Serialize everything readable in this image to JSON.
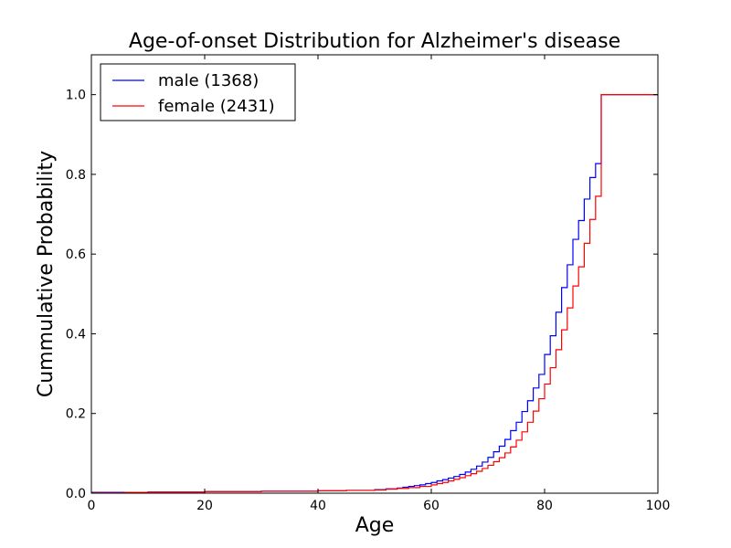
{
  "chart_data": {
    "type": "line",
    "step": "post",
    "title": "Age-of-onset Distribution for Alzheimer's disease",
    "xlabel": "Age",
    "ylabel": "Cummulative Probability",
    "xlim": [
      0,
      100
    ],
    "ylim": [
      0,
      1.1
    ],
    "x_ticks": [
      0,
      20,
      40,
      60,
      80,
      100
    ],
    "x_tick_labels": [
      "0",
      "20",
      "40",
      "60",
      "80",
      "100"
    ],
    "y_ticks": [
      0,
      0.2,
      0.4,
      0.6,
      0.8,
      1.0
    ],
    "y_tick_labels": [
      "0.0",
      "0.2",
      "0.4",
      "0.6",
      "0.8",
      "1.0"
    ],
    "grid": false,
    "legend_position": "top-left",
    "series": [
      {
        "name": "male (1368)",
        "color": "#0000ff",
        "x": [
          0,
          10,
          20,
          30,
          40,
          45,
          50,
          52,
          54,
          55,
          56,
          57,
          58,
          59,
          60,
          61,
          62,
          63,
          64,
          65,
          66,
          67,
          68,
          69,
          70,
          71,
          72,
          73,
          74,
          75,
          76,
          77,
          78,
          79,
          80,
          81,
          82,
          83,
          84,
          85,
          86,
          87,
          88,
          89,
          90,
          100
        ],
        "y": [
          0.002,
          0.003,
          0.004,
          0.005,
          0.006,
          0.007,
          0.009,
          0.011,
          0.013,
          0.015,
          0.017,
          0.019,
          0.021,
          0.024,
          0.027,
          0.031,
          0.034,
          0.038,
          0.042,
          0.047,
          0.053,
          0.06,
          0.068,
          0.078,
          0.09,
          0.104,
          0.118,
          0.135,
          0.157,
          0.178,
          0.205,
          0.232,
          0.264,
          0.298,
          0.348,
          0.395,
          0.454,
          0.516,
          0.573,
          0.637,
          0.684,
          0.738,
          0.792,
          0.827,
          1.0,
          1.0
        ]
      },
      {
        "name": "female (2431)",
        "color": "#ff0000",
        "x": [
          0,
          6,
          10,
          20,
          30,
          40,
          45,
          50,
          52,
          54,
          56,
          58,
          60,
          61,
          62,
          63,
          64,
          65,
          66,
          67,
          68,
          69,
          70,
          71,
          72,
          73,
          74,
          75,
          76,
          77,
          78,
          79,
          80,
          81,
          82,
          83,
          84,
          85,
          86,
          87,
          88,
          89,
          90,
          100
        ],
        "y": [
          0.001,
          0.002,
          0.003,
          0.004,
          0.005,
          0.006,
          0.007,
          0.008,
          0.01,
          0.012,
          0.014,
          0.017,
          0.021,
          0.024,
          0.027,
          0.031,
          0.035,
          0.039,
          0.044,
          0.049,
          0.055,
          0.062,
          0.07,
          0.079,
          0.089,
          0.101,
          0.116,
          0.133,
          0.154,
          0.178,
          0.206,
          0.237,
          0.274,
          0.315,
          0.36,
          0.41,
          0.465,
          0.52,
          0.568,
          0.627,
          0.687,
          0.745,
          1.0,
          1.0
        ]
      }
    ]
  }
}
